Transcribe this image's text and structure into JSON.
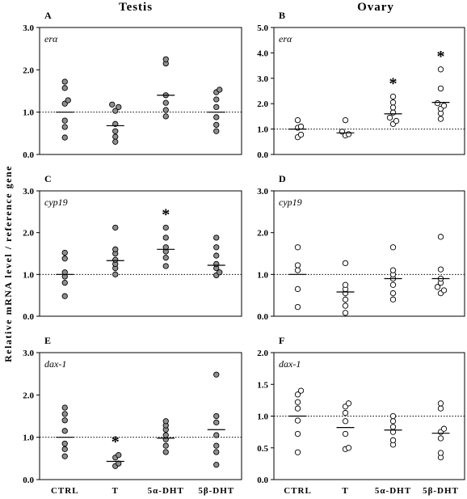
{
  "figure": {
    "column_titles": [
      "Testis",
      "Ovary"
    ],
    "ylabel": "Relative mRNA level / reference gene",
    "categories": [
      "CTRL",
      "T",
      "5α-DHT",
      "5β-DHT"
    ],
    "colors": {
      "testis_fill": "#8f8f8f",
      "ovary_fill": "#ffffff",
      "stroke": "#000000"
    }
  },
  "chart_data": [
    {
      "type": "scatter",
      "panel": "A",
      "gene": "erα",
      "tissue": "Testis",
      "ylim": [
        0,
        3
      ],
      "yticks": [
        "0.0",
        "1.0",
        "2.0",
        "3.0"
      ],
      "reference_line": 1.0,
      "categories": [
        "CTRL",
        "T",
        "5α-DHT",
        "5β-DHT"
      ],
      "values": [
        [
          0.4,
          0.65,
          0.8,
          1.2,
          1.28,
          1.57,
          1.72
        ],
        [
          0.3,
          0.42,
          0.55,
          0.72,
          1.03,
          1.12,
          1.18
        ],
        [
          0.9,
          1.05,
          1.22,
          1.4,
          2.15,
          2.25
        ],
        [
          0.55,
          0.7,
          0.88,
          1.12,
          1.3,
          1.47,
          1.53
        ]
      ],
      "means": [
        1.0,
        0.68,
        1.4,
        1.0
      ],
      "significant": [
        "",
        "",
        "",
        ""
      ]
    },
    {
      "type": "scatter",
      "panel": "B",
      "gene": "erα",
      "tissue": "Ovary",
      "ylim": [
        0,
        5
      ],
      "yticks": [
        "0.0",
        "1.0",
        "2.0",
        "3.0",
        "4.0",
        "5.0"
      ],
      "reference_line": 1.0,
      "categories": [
        "CTRL",
        "T",
        "5α-DHT",
        "5β-DHT"
      ],
      "values": [
        [
          0.68,
          0.78,
          1.05,
          1.1,
          1.35
        ],
        [
          0.75,
          0.8,
          0.9,
          1.35
        ],
        [
          1.2,
          1.32,
          1.45,
          1.65,
          1.85,
          2.05,
          2.28
        ],
        [
          1.4,
          1.62,
          1.8,
          1.92,
          2.02,
          2.6,
          3.35
        ]
      ],
      "means": [
        1.0,
        0.85,
        1.6,
        2.05
      ],
      "significant": [
        "",
        "",
        "*",
        "*"
      ]
    },
    {
      "type": "scatter",
      "panel": "C",
      "gene": "cyp19",
      "tissue": "Testis",
      "ylim": [
        0,
        3
      ],
      "yticks": [
        "0.0",
        "1.0",
        "2.0",
        "3.0"
      ],
      "reference_line": 1.0,
      "categories": [
        "CTRL",
        "T",
        "5α-DHT",
        "5β-DHT"
      ],
      "values": [
        [
          0.48,
          0.8,
          0.95,
          1.05,
          1.38,
          1.52
        ],
        [
          1.0,
          1.15,
          1.25,
          1.35,
          1.5,
          1.6,
          2.12
        ],
        [
          1.2,
          1.4,
          1.55,
          1.65,
          1.88,
          2.12
        ],
        [
          0.98,
          1.05,
          1.15,
          1.25,
          1.45,
          1.65,
          1.88
        ]
      ],
      "means": [
        1.0,
        1.33,
        1.6,
        1.22
      ],
      "significant": [
        "",
        "",
        "*",
        ""
      ]
    },
    {
      "type": "scatter",
      "panel": "D",
      "gene": "cyp19",
      "tissue": "Ovary",
      "ylim": [
        0,
        3
      ],
      "yticks": [
        "0.0",
        "1.0",
        "2.0",
        "3.0"
      ],
      "reference_line": 1.0,
      "categories": [
        "CTRL",
        "T",
        "5α-DHT",
        "5β-DHT"
      ],
      "values": [
        [
          0.22,
          0.65,
          1.1,
          1.22,
          1.65
        ],
        [
          0.08,
          0.25,
          0.4,
          0.55,
          0.65,
          0.75,
          1.27
        ],
        [
          0.4,
          0.55,
          0.75,
          0.9,
          1.0,
          1.1,
          1.65
        ],
        [
          0.55,
          0.62,
          0.7,
          0.8,
          0.9,
          1.12,
          1.9
        ]
      ],
      "means": [
        1.0,
        0.58,
        0.9,
        0.9
      ],
      "significant": [
        "",
        "",
        "",
        ""
      ]
    },
    {
      "type": "scatter",
      "panel": "E",
      "gene": "dax-1",
      "tissue": "Testis",
      "ylim": [
        0,
        3
      ],
      "yticks": [
        "0.0",
        "1.0",
        "2.0",
        "3.0"
      ],
      "reference_line": 1.0,
      "categories": [
        "CTRL",
        "T",
        "5α-DHT",
        "5β-DHT"
      ],
      "values": [
        [
          0.55,
          0.72,
          0.85,
          1.15,
          1.4,
          1.55,
          1.7
        ],
        [
          0.32,
          0.38,
          0.52,
          0.58
        ],
        [
          0.65,
          0.8,
          0.95,
          1.05,
          1.18,
          1.28,
          1.38
        ],
        [
          0.35,
          0.65,
          0.8,
          1.05,
          1.35,
          1.5,
          2.48
        ]
      ],
      "means": [
        1.0,
        0.43,
        0.98,
        1.18
      ],
      "significant": [
        "",
        "*",
        "",
        ""
      ]
    },
    {
      "type": "scatter",
      "panel": "F",
      "gene": "dax-1",
      "tissue": "Ovary",
      "ylim": [
        0,
        2
      ],
      "yticks": [
        "0.0",
        "0.5",
        "1.0",
        "1.5",
        "2.0"
      ],
      "reference_line": 1.0,
      "categories": [
        "CTRL",
        "T",
        "5α-DHT",
        "5β-DHT"
      ],
      "values": [
        [
          0.43,
          0.72,
          0.93,
          1.12,
          1.22,
          1.34,
          1.4
        ],
        [
          0.48,
          0.5,
          0.72,
          0.92,
          1.05,
          1.15,
          1.2
        ],
        [
          0.55,
          0.62,
          0.75,
          0.83,
          0.92,
          1.0
        ],
        [
          0.35,
          0.42,
          0.65,
          0.75,
          0.8,
          1.12,
          1.2
        ]
      ],
      "means": [
        1.0,
        0.82,
        0.78,
        0.73
      ],
      "significant": [
        "",
        "",
        "",
        ""
      ]
    }
  ]
}
